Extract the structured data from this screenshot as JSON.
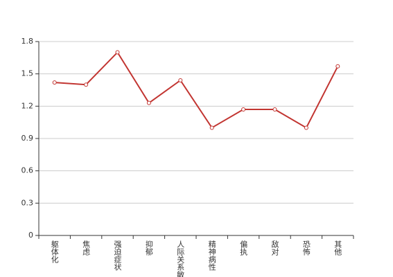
{
  "chart_data": {
    "type": "line",
    "categories": [
      "躯体化",
      "焦虑",
      "强迫症状",
      "抑郁",
      "人际关系敏感",
      "精神病性",
      "偏执",
      "敌对",
      "恐怖",
      "其他"
    ],
    "series": [
      {
        "color": "#c23531",
        "values": [
          1.42,
          1.4,
          1.7,
          1.23,
          1.44,
          1.0,
          1.17,
          1.17,
          1.0,
          1.57
        ]
      }
    ],
    "ylim": [
      0,
      1.8
    ],
    "yticks": [
      0,
      0.3,
      0.6,
      0.9,
      1.2,
      1.5,
      1.8
    ],
    "grid": true
  }
}
